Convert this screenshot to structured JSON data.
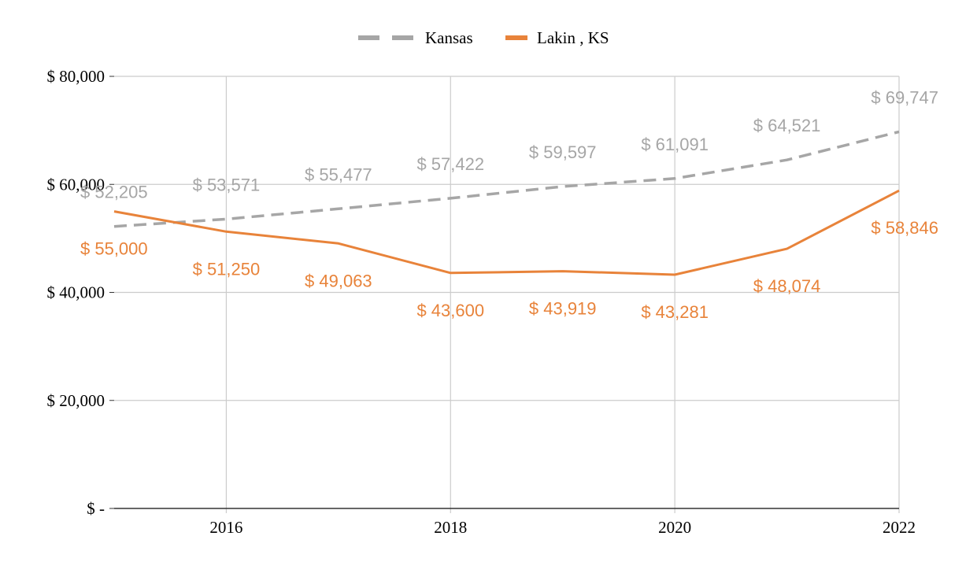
{
  "chart_data": {
    "type": "line",
    "title": "",
    "xlabel": "",
    "ylabel": "",
    "x": [
      2015,
      2016,
      2017,
      2018,
      2019,
      2020,
      2021,
      2022
    ],
    "x_tick_values": [
      2016,
      2018,
      2020,
      2022
    ],
    "x_tick_labels": [
      "2016",
      "2018",
      "2020",
      "2022"
    ],
    "xlim": [
      2015,
      2022
    ],
    "ylim": [
      0,
      80000
    ],
    "y_tick_values": [
      0,
      20000,
      40000,
      60000,
      80000
    ],
    "y_tick_labels": [
      "$ -",
      "$ 20,000",
      "$ 40,000",
      "$ 60,000",
      "$ 80,000"
    ],
    "grid": true,
    "legend_position": "top-center",
    "series": [
      {
        "name": "Kansas",
        "color": "#a6a6a6",
        "style": "dashed",
        "values": [
          52205,
          53571,
          55477,
          57422,
          59597,
          61091,
          64521,
          69747
        ],
        "labels": [
          "$ 52,205",
          "$ 53,571",
          "$ 55,477",
          "$ 57,422",
          "$ 59,597",
          "$ 61,091",
          "$ 64,521",
          "$ 69,747"
        ],
        "label_position": "above"
      },
      {
        "name": "Lakin , KS",
        "color": "#e8833a",
        "style": "solid",
        "values": [
          55000,
          51250,
          49063,
          43600,
          43919,
          43281,
          48074,
          58846
        ],
        "labels": [
          "$ 55,000",
          "$ 51,250",
          "$ 49,063",
          "$ 43,600",
          "$ 43,919",
          "$ 43,281",
          "$ 48,074",
          "$ 58,846"
        ],
        "label_position": "below"
      }
    ]
  },
  "colors": {
    "grid": "#cccccc",
    "axis": "#333333",
    "tick_text": "#000000"
  }
}
